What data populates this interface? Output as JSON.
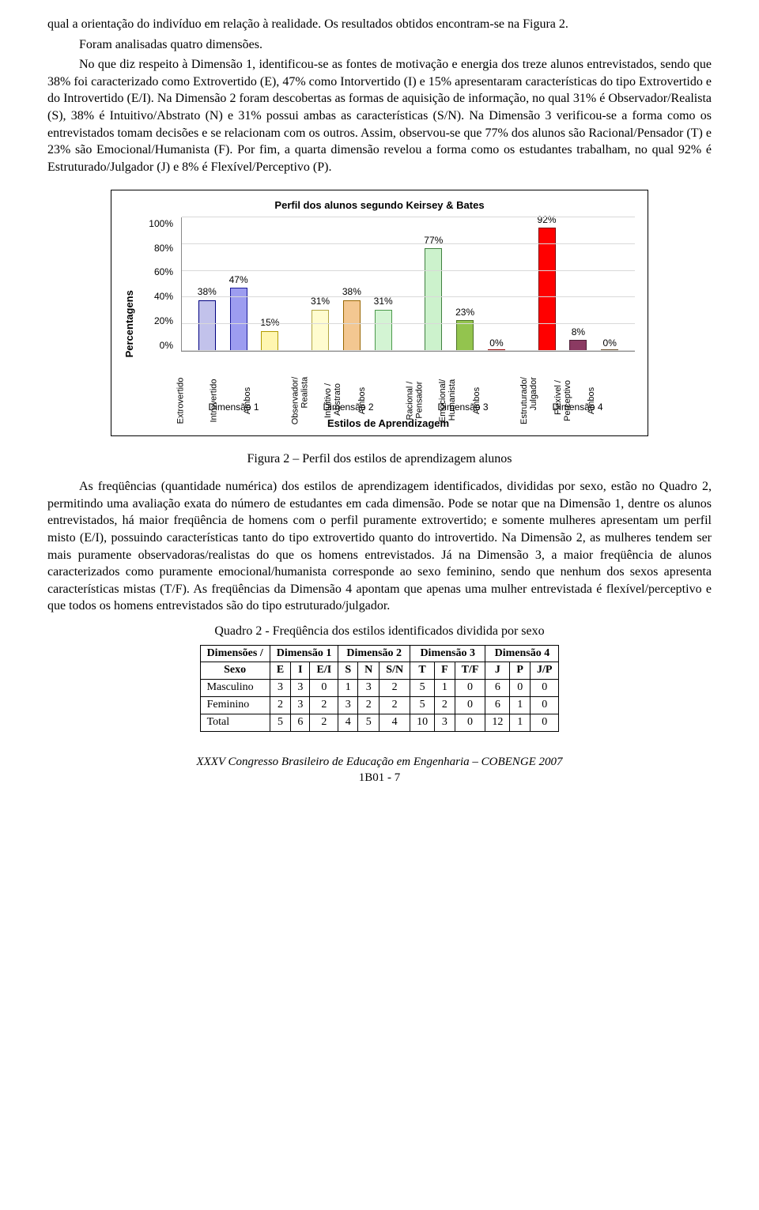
{
  "paragraphs": {
    "p1": "qual a orientação do indivíduo em relação à realidade. Os resultados obtidos encontram-se na Figura 2.",
    "p2": "Foram analisadas quatro dimensões.",
    "p3": "No que diz respeito à Dimensão 1, identificou-se as fontes de motivação e energia dos treze alunos entrevistados, sendo que 38% foi caracterizado como Extrovertido (E), 47% como Intorvertido (I) e 15% apresentaram características do tipo Extrovertido e do Introvertido (E/I). Na Dimensão 2 foram descobertas as formas de aquisição de informação, no qual 31% é Observador/Realista (S), 38% é Intuitivo/Abstrato (N) e 31% possui ambas as características (S/N). Na Dimensão 3 verificou-se a forma como os entrevistados tomam decisões e se relacionam com os outros. Assim, observou-se que 77% dos alunos são Racional/Pensador (T) e 23% são Emocional/Humanista (F). Por fim, a quarta dimensão revelou a forma como os estudantes trabalham, no qual 92% é Estruturado/Julgador (J) e 8% é Flexível/Perceptivo (P).",
    "fig_caption": "Figura 2 – Perfil dos estilos de aprendizagem alunos",
    "p4": "As freqüências (quantidade numérica) dos estilos de aprendizagem identificados, divididas por sexo, estão no Quadro 2, permitindo uma avaliação exata do número de estudantes em cada dimensão. Pode se notar que na Dimensão 1, dentre os alunos entrevistados, há maior freqüência de homens com o perfil puramente extrovertido; e somente mulheres apresentam um perfil misto (E/I), possuindo características tanto do tipo extrovertido quanto do introvertido. Na Dimensão 2, as mulheres tendem ser mais puramente observadoras/realistas do que os homens entrevistados. Já na Dimensão 3, a maior freqüência de alunos caracterizados como puramente emocional/humanista corresponde ao sexo feminino, sendo que nenhum dos sexos apresenta características mistas (T/F). As freqüências da Dimensão 4 apontam que apenas uma mulher entrevistada é flexível/perceptivo e que todos os homens entrevistados são do tipo estruturado/julgador.",
    "quadro_caption": "Quadro 2 - Freqüência dos estilos identificados dividida por sexo"
  },
  "chart": {
    "title": "Perfil dos alunos segundo Keirsey & Bates",
    "y_label": "Percentagens",
    "x_label": "Estilos de Aprendizagem",
    "y_ticks": [
      "100%",
      "80%",
      "60%",
      "40%",
      "20%",
      "0%"
    ],
    "y_max": 100,
    "grid_color": "#d9d9d9",
    "border_color": "#888888",
    "groups": [
      {
        "name": "Dimensão 1",
        "bars": [
          {
            "cat": "Extrovertido",
            "label": "38%",
            "value": 38,
            "fill": "#c2c2eb",
            "border": "#000080"
          },
          {
            "cat": "Introvertido",
            "label": "47%",
            "value": 47,
            "fill": "#9d9df0",
            "border": "#1a1a99"
          },
          {
            "cat": "Ambos",
            "label": "15%",
            "value": 15,
            "fill": "#fff6b0",
            "border": "#b39b00"
          }
        ]
      },
      {
        "name": "Dimensão 2",
        "bars": [
          {
            "cat": "Observador/\nRealista",
            "label": "31%",
            "value": 31,
            "fill": "#fffccf",
            "border": "#b3a642"
          },
          {
            "cat": "Intuitivo /\nAbstrato",
            "label": "38%",
            "value": 38,
            "fill": "#f3c791",
            "border": "#996600"
          },
          {
            "cat": "Ambos",
            "label": "31%",
            "value": 31,
            "fill": "#d3f4d3",
            "border": "#4c994c"
          }
        ]
      },
      {
        "name": "Dimensão 3",
        "bars": [
          {
            "cat": "Racional /\nPensador",
            "label": "77%",
            "value": 77,
            "fill": "#ccf2cc",
            "border": "#408040"
          },
          {
            "cat": "Emocional/\nHumanista",
            "label": "23%",
            "value": 23,
            "fill": "#93c44e",
            "border": "#4d7326"
          },
          {
            "cat": "Ambos",
            "label": "0%",
            "value": 0,
            "fill": "#ff0000",
            "border": "#990000"
          }
        ]
      },
      {
        "name": "Dimensão 4",
        "bars": [
          {
            "cat": "Estruturado/\nJulgador",
            "label": "92%",
            "value": 92,
            "fill": "#ff0000",
            "border": "#800000"
          },
          {
            "cat": "Flexível /\nPerceptivo",
            "label": "8%",
            "value": 8,
            "fill": "#8b3a62",
            "border": "#4d1f36"
          },
          {
            "cat": "Ambos",
            "label": "0%",
            "value": 0,
            "fill": "#b88a4a",
            "border": "#6b4f29"
          }
        ]
      }
    ]
  },
  "table": {
    "corner_top": "Dimensões /",
    "corner_bottom": "Sexo",
    "dim_heads": [
      "Dimensão 1",
      "Dimensão 2",
      "Dimensão 3",
      "Dimensão 4"
    ],
    "sub_heads": [
      "E",
      "I",
      "E/I",
      "S",
      "N",
      "S/N",
      "T",
      "F",
      "T/F",
      "J",
      "P",
      "J/P"
    ],
    "rows": [
      {
        "label": "Masculino",
        "cells": [
          3,
          3,
          0,
          1,
          3,
          2,
          5,
          1,
          0,
          6,
          0,
          0
        ]
      },
      {
        "label": "Feminino",
        "cells": [
          2,
          3,
          2,
          3,
          2,
          2,
          5,
          2,
          0,
          6,
          1,
          0
        ]
      },
      {
        "label": "Total",
        "cells": [
          5,
          6,
          2,
          4,
          5,
          4,
          10,
          3,
          0,
          12,
          1,
          0
        ]
      }
    ]
  },
  "footer": {
    "line1": "XXXV Congresso Brasileiro de Educação em Engenharia – COBENGE 2007",
    "line2": "1B01 - 7"
  }
}
